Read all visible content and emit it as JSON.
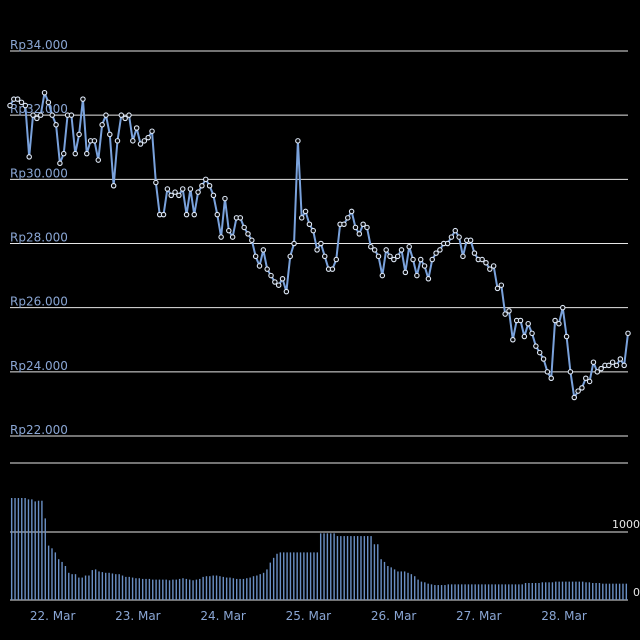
{
  "chart_data": {
    "type": "line",
    "price_axis": {
      "min": 22000,
      "max": 34000,
      "ticks": [
        {
          "value": 34000,
          "label": "Rp34.000"
        },
        {
          "value": 32000,
          "label": "Rp32.000"
        },
        {
          "value": 30000,
          "label": "Rp30.000"
        },
        {
          "value": 28000,
          "label": "Rp28.000"
        },
        {
          "value": 26000,
          "label": "Rp26.000"
        },
        {
          "value": 24000,
          "label": "Rp24.000"
        },
        {
          "value": 22000,
          "label": "Rp22.000"
        }
      ]
    },
    "volume_axis": {
      "ticks": [
        {
          "value": 1000,
          "label": "1000"
        },
        {
          "value": 0,
          "label": "0"
        }
      ]
    },
    "x_axis": {
      "domain": [
        "2024-03-21 12:00",
        "2024-03-28 18:00"
      ],
      "ticks": [
        {
          "at": "2024-03-22 00:00",
          "label": "22. Mar"
        },
        {
          "at": "2024-03-23 00:00",
          "label": "23. Mar"
        },
        {
          "at": "2024-03-24 00:00",
          "label": "24. Mar"
        },
        {
          "at": "2024-03-25 00:00",
          "label": "25. Mar"
        },
        {
          "at": "2024-03-26 00:00",
          "label": "26. Mar"
        },
        {
          "at": "2024-03-27 00:00",
          "label": "27. Mar"
        },
        {
          "at": "2024-03-28 00:00",
          "label": "28. Mar"
        }
      ]
    },
    "grid": true,
    "colors": {
      "line": "#7aa2dc",
      "point": "#dfe9f8",
      "volume": "#6a8fc4",
      "grid": "#e6e6e6",
      "tick": "#8aa6d4",
      "background": "#000000"
    },
    "price_series": [
      32300,
      32500,
      32500,
      32400,
      32300,
      30700,
      32000,
      31900,
      32000,
      32700,
      32400,
      32000,
      31700,
      30500,
      30800,
      32000,
      32000,
      30800,
      31400,
      32500,
      30800,
      31200,
      31200,
      30600,
      31700,
      32000,
      31400,
      29800,
      31200,
      32000,
      31900,
      32000,
      31200,
      31600,
      31100,
      31200,
      31300,
      31500,
      29900,
      28900,
      28900,
      29700,
      29500,
      29600,
      29500,
      29700,
      28900,
      29700,
      28900,
      29600,
      29800,
      30000,
      29800,
      29500,
      28900,
      28200,
      29400,
      28400,
      28200,
      28800,
      28800,
      28500,
      28300,
      28100,
      27600,
      27300,
      27800,
      27200,
      27000,
      26800,
      26700,
      26900,
      26500,
      27600,
      28000,
      31200,
      28800,
      29000,
      28600,
      28400,
      27800,
      28000,
      27600,
      27200,
      27200,
      27500,
      28600,
      28600,
      28800,
      29000,
      28500,
      28300,
      28600,
      28500,
      27900,
      27800,
      27600,
      27000,
      27800,
      27600,
      27500,
      27600,
      27800,
      27100,
      27900,
      27500,
      27000,
      27500,
      27300,
      26900,
      27500,
      27700,
      27800,
      28000,
      28000,
      28200,
      28400,
      28200,
      27600,
      28100,
      28100,
      27700,
      27500,
      27500,
      27400,
      27200,
      27300,
      26600,
      26700,
      25800,
      25900,
      25000,
      25600,
      25600,
      25100,
      25500,
      25200,
      24800,
      24600,
      24400,
      24000,
      23800,
      25600,
      25500,
      26000,
      25100,
      24000,
      23200,
      23400,
      23500,
      23800,
      23700,
      24300,
      24000,
      24100,
      24200,
      24200,
      24300,
      24200,
      24400,
      24200,
      25200
    ],
    "volume_series": [
      1500,
      1500,
      1500,
      1500,
      1500,
      1480,
      1480,
      1450,
      1460,
      1460,
      1200,
      800,
      760,
      700,
      600,
      560,
      500,
      400,
      380,
      380,
      330,
      330,
      360,
      360,
      440,
      450,
      420,
      410,
      400,
      400,
      390,
      380,
      380,
      360,
      340,
      340,
      330,
      320,
      320,
      310,
      310,
      310,
      300,
      300,
      300,
      300,
      300,
      290,
      300,
      300,
      310,
      320,
      310,
      300,
      290,
      300,
      310,
      340,
      350,
      350,
      360,
      360,
      350,
      340,
      330,
      330,
      320,
      310,
      310,
      310,
      320,
      330,
      350,
      360,
      380,
      400,
      450,
      550,
      620,
      680,
      700,
      700,
      700,
      700,
      700,
      700,
      700,
      700,
      700,
      700,
      700,
      700,
      980,
      980,
      980,
      980,
      980,
      940,
      940,
      940,
      940,
      940,
      940,
      940,
      940,
      940,
      940,
      940,
      820,
      820,
      600,
      560,
      500,
      480,
      450,
      420,
      420,
      420,
      400,
      380,
      350,
      300,
      270,
      260,
      240,
      230,
      220,
      220,
      220,
      220,
      230,
      230,
      230,
      230,
      230,
      230,
      230,
      230,
      230,
      230,
      230,
      230,
      230,
      230,
      230,
      230,
      230,
      230,
      230,
      230,
      230,
      230,
      230,
      250,
      250,
      250,
      250,
      250,
      260,
      260,
      260,
      260,
      270,
      270,
      270,
      270,
      270,
      270,
      270,
      270,
      270,
      260,
      260,
      250,
      250,
      250,
      240,
      240,
      240,
      240,
      240,
      240,
      240,
      240
    ]
  }
}
